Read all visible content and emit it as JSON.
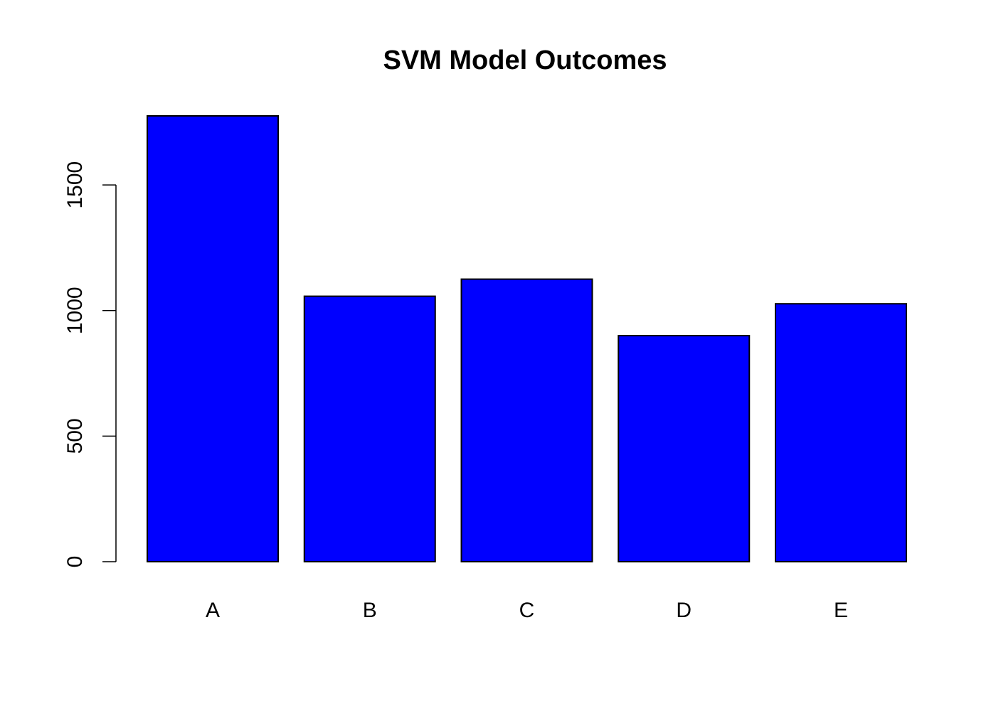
{
  "chart_data": {
    "type": "bar",
    "title": "SVM Model Outcomes",
    "categories": [
      "A",
      "B",
      "C",
      "D",
      "E"
    ],
    "values": [
      1775,
      1057,
      1125,
      900,
      1027
    ],
    "ylim": [
      0,
      1775
    ],
    "yticks": [
      0,
      500,
      1000,
      1500
    ],
    "ytick_labels": [
      "0",
      "500",
      "1000",
      "1500"
    ],
    "xlabel": "",
    "ylabel": "",
    "grid": false,
    "legend": "none",
    "bar_color": "#0000ff",
    "bar_border_color": "#000000",
    "axis_color": "#000000",
    "background_color": "#ffffff"
  }
}
